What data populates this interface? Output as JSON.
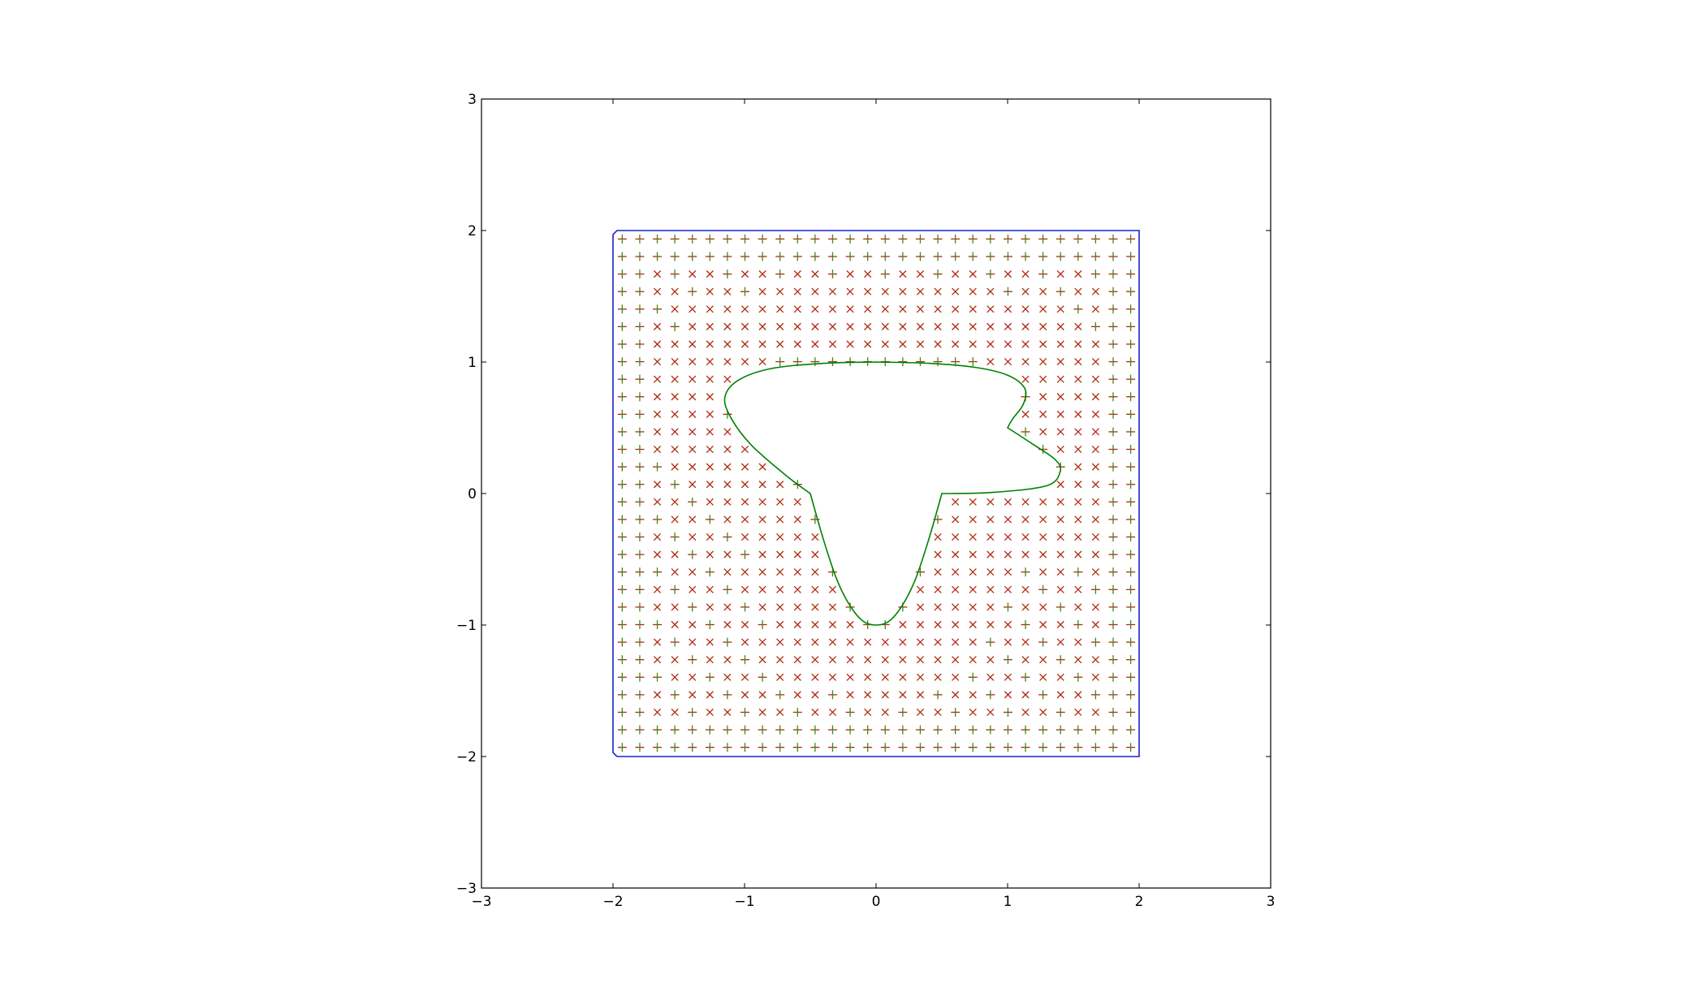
{
  "chart_data": {
    "type": "scatter",
    "title": "",
    "xlabel": "",
    "ylabel": "",
    "xlim": [
      -3,
      3
    ],
    "ylim": [
      -3,
      3
    ],
    "grid": false,
    "legend": "none",
    "x_ticks": [
      "−3",
      "−2",
      "−1",
      "0",
      "1",
      "2",
      "3"
    ],
    "y_ticks": [
      "−3",
      "−2",
      "−1",
      "0",
      "1",
      "2",
      "3"
    ],
    "x_tick_values": [
      -3,
      -2,
      -1,
      0,
      1,
      2,
      3
    ],
    "y_tick_values": [
      -3,
      -2,
      -1,
      0,
      1,
      2,
      3
    ],
    "grid_points": {
      "start": -1.93,
      "step": 0.1333,
      "count": 30
    },
    "marker_colors": {
      "plus": "#3a8a1e",
      "cross": "#b02a10"
    },
    "boundary_color": "#1f1fd0",
    "curve_color": "#008000",
    "outer_boundary": [
      [
        -1.97,
        -2.0
      ],
      [
        2.0,
        -2.0
      ],
      [
        2.0,
        2.0
      ],
      [
        -1.97,
        2.0
      ],
      [
        -2.0,
        1.97
      ],
      [
        -2.0,
        -1.97
      ],
      [
        -1.97,
        -2.0
      ]
    ],
    "inner_curve": [
      [
        0.0,
        1.0
      ],
      [
        0.4,
        0.99
      ],
      [
        0.75,
        0.96
      ],
      [
        1.0,
        0.9
      ],
      [
        1.13,
        0.8
      ],
      [
        1.12,
        0.68
      ],
      [
        1.04,
        0.57
      ],
      [
        1.0,
        0.5
      ],
      [
        1.2,
        0.37
      ],
      [
        1.36,
        0.26
      ],
      [
        1.4,
        0.17
      ],
      [
        1.3,
        0.06
      ],
      [
        0.9,
        0.01
      ],
      [
        0.5,
        0.0
      ],
      [
        0.4,
        -0.35
      ],
      [
        0.3,
        -0.65
      ],
      [
        0.2,
        -0.85
      ],
      [
        0.1,
        -0.97
      ],
      [
        0.0,
        -1.0
      ],
      [
        -0.1,
        -0.97
      ],
      [
        -0.2,
        -0.85
      ],
      [
        -0.3,
        -0.65
      ],
      [
        -0.4,
        -0.35
      ],
      [
        -0.5,
        0.0
      ],
      [
        -0.7,
        0.15
      ],
      [
        -0.95,
        0.37
      ],
      [
        -1.1,
        0.57
      ],
      [
        -1.15,
        0.73
      ],
      [
        -1.05,
        0.86
      ],
      [
        -0.8,
        0.95
      ],
      [
        -0.4,
        0.99
      ],
      [
        0.0,
        1.0
      ]
    ]
  }
}
